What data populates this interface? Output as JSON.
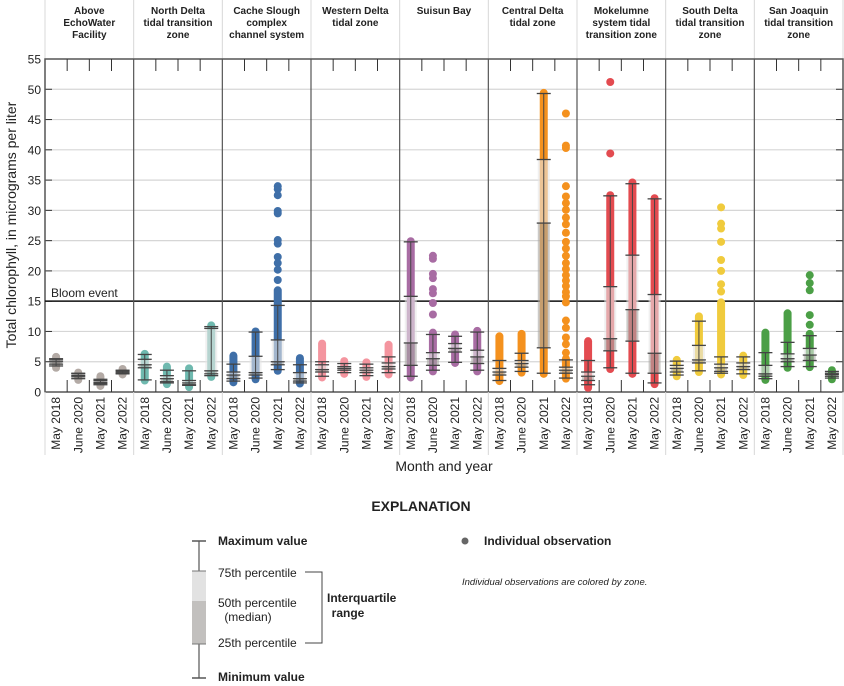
{
  "chart_data": {
    "type": "box",
    "ylabel": "Total chlorophyll, in micrograms per liter",
    "xlabel": "Month and year",
    "ylim": [
      0,
      55
    ],
    "yticks": [
      0,
      5,
      10,
      15,
      20,
      25,
      30,
      35,
      40,
      45,
      50,
      55
    ],
    "grid": true,
    "reference_line": {
      "value": 15,
      "label": "Bloom event"
    },
    "categories": [
      "May 2018",
      "June 2020",
      "May 2021",
      "May 2022"
    ],
    "panels": [
      {
        "name": "Above EchoWater Facility",
        "lines": [
          "Above",
          "EchoWater",
          "Facility"
        ],
        "color": "#b3aaa5",
        "boxes": [
          {
            "min": 4.3,
            "q1": 4.6,
            "median": 5.0,
            "q3": 5.3,
            "max": 5.5,
            "obs_min": 4.0,
            "obs_max": 5.8,
            "points": []
          },
          {
            "min": 2.2,
            "q1": 2.5,
            "median": 2.7,
            "q3": 3.0,
            "max": 3.1,
            "obs_min": 2.0,
            "obs_max": 3.2,
            "points": []
          },
          {
            "min": 1.2,
            "q1": 1.4,
            "median": 1.6,
            "q3": 1.9,
            "max": 2.1,
            "obs_min": 1.0,
            "obs_max": 2.6,
            "points": []
          },
          {
            "min": 3.0,
            "q1": 3.1,
            "median": 3.3,
            "q3": 3.5,
            "max": 3.6,
            "obs_min": 2.9,
            "obs_max": 3.8,
            "points": []
          }
        ]
      },
      {
        "name": "North Delta tidal transition zone",
        "lines": [
          "North Delta",
          "tidal transition",
          "zone"
        ],
        "color": "#6fb9af",
        "boxes": [
          {
            "min": 2.0,
            "q1": 4.0,
            "median": 4.5,
            "q3": 5.4,
            "max": 6.2,
            "obs_min": 1.9,
            "obs_max": 6.3,
            "points": []
          },
          {
            "min": 1.5,
            "q1": 1.7,
            "median": 2.2,
            "q3": 2.7,
            "max": 3.6,
            "obs_min": 1.3,
            "obs_max": 4.2,
            "points": []
          },
          {
            "min": 1.1,
            "q1": 1.2,
            "median": 1.5,
            "q3": 1.9,
            "max": 3.5,
            "obs_min": 0.8,
            "obs_max": 3.9,
            "points": []
          },
          {
            "min": 2.7,
            "q1": 3.0,
            "median": 3.5,
            "q3": 10.5,
            "max": 10.8,
            "obs_min": 2.5,
            "obs_max": 11.0,
            "points": []
          }
        ]
      },
      {
        "name": "Cache Slough complex channel system",
        "lines": [
          "Cache Slough",
          "complex",
          "channel system"
        ],
        "color": "#3f6fa8",
        "boxes": [
          {
            "min": 1.8,
            "q1": 2.2,
            "median": 2.8,
            "q3": 3.3,
            "max": 4.6,
            "obs_min": 1.6,
            "obs_max": 6.0,
            "points": []
          },
          {
            "min": 2.3,
            "q1": 2.8,
            "median": 3.2,
            "q3": 5.9,
            "max": 9.9,
            "obs_min": 2.1,
            "obs_max": 10.0,
            "points": []
          },
          {
            "min": 3.7,
            "q1": 4.5,
            "median": 5.0,
            "q3": 8.6,
            "max": 14.3,
            "obs_min": 3.5,
            "obs_max": 16.8,
            "points": [
              18.5,
              20.2,
              21.3,
              22.3,
              24.5,
              25.1,
              29.5,
              29.9,
              32.5,
              33.5,
              34.0
            ]
          },
          {
            "min": 1.5,
            "q1": 1.8,
            "median": 2.2,
            "q3": 3.2,
            "max": 4.5,
            "obs_min": 1.4,
            "obs_max": 5.6,
            "points": []
          }
        ]
      },
      {
        "name": "Western Delta tidal zone",
        "lines": [
          "Western Delta",
          "tidal zone"
        ],
        "color": "#f4959f",
        "boxes": [
          {
            "min": 2.6,
            "q1": 3.3,
            "median": 3.7,
            "q3": 4.5,
            "max": 5.0,
            "obs_min": 2.4,
            "obs_max": 8.0,
            "points": []
          },
          {
            "min": 3.2,
            "q1": 3.6,
            "median": 3.9,
            "q3": 4.2,
            "max": 4.7,
            "obs_min": 3.0,
            "obs_max": 5.1,
            "points": []
          },
          {
            "min": 2.7,
            "q1": 3.2,
            "median": 3.6,
            "q3": 4.0,
            "max": 4.6,
            "obs_min": 2.5,
            "obs_max": 4.9,
            "points": []
          },
          {
            "min": 3.2,
            "q1": 3.8,
            "median": 4.2,
            "q3": 4.8,
            "max": 5.8,
            "obs_min": 2.9,
            "obs_max": 7.8,
            "points": []
          }
        ]
      },
      {
        "name": "Suisun Bay",
        "lines": [
          "Suisun Bay"
        ],
        "color": "#a86ca3",
        "boxes": [
          {
            "min": 2.6,
            "q1": 4.4,
            "median": 8.1,
            "q3": 15.8,
            "max": 24.8,
            "obs_min": 2.4,
            "obs_max": 24.9,
            "points": []
          },
          {
            "min": 3.6,
            "q1": 4.4,
            "median": 5.5,
            "q3": 6.5,
            "max": 9.5,
            "obs_min": 3.4,
            "obs_max": 9.8,
            "points": [
              12.8,
              14.7,
              16.3,
              17.0,
              18.8,
              19.5,
              22.0,
              22.5
            ]
          },
          {
            "min": 4.9,
            "q1": 6.6,
            "median": 7.2,
            "q3": 8.0,
            "max": 9.2,
            "obs_min": 4.8,
            "obs_max": 9.5,
            "points": []
          },
          {
            "min": 3.6,
            "q1": 4.7,
            "median": 5.8,
            "q3": 6.9,
            "max": 9.9,
            "obs_min": 3.4,
            "obs_max": 10.1,
            "points": []
          }
        ]
      },
      {
        "name": "Central Delta tidal zone",
        "lines": [
          "Central Delta",
          "tidal zone"
        ],
        "color": "#f4911e",
        "boxes": [
          {
            "min": 1.9,
            "q1": 2.8,
            "median": 3.3,
            "q3": 3.9,
            "max": 5.2,
            "obs_min": 1.8,
            "obs_max": 9.2,
            "points": []
          },
          {
            "min": 3.4,
            "q1": 4.1,
            "median": 4.7,
            "q3": 5.2,
            "max": 6.4,
            "obs_min": 3.2,
            "obs_max": 9.6,
            "points": []
          },
          {
            "min": 3.1,
            "q1": 7.3,
            "median": 27.9,
            "q3": 38.4,
            "max": 49.3,
            "obs_min": 3.0,
            "obs_max": 49.4,
            "points": []
          },
          {
            "min": 2.3,
            "q1": 3.1,
            "median": 3.6,
            "q3": 4.1,
            "max": 5.3,
            "obs_min": 2.2,
            "obs_max": 5.5,
            "points": [
              6.5,
              7.9,
              9.0,
              10.6,
              11.8,
              14.8,
              15.8,
              16.5,
              17.5,
              18.4,
              19.3,
              20.3,
              21.3,
              22.5,
              23.7,
              24.8,
              26.3,
              27.7,
              28.8,
              30.1,
              31.2,
              32.3,
              34.0,
              40.3,
              40.7,
              46.0
            ]
          }
        ]
      },
      {
        "name": "Mokelumne system tidal transition zone",
        "lines": [
          "Mokelumne",
          "system tidal",
          "transition zone"
        ],
        "color": "#e34b50",
        "boxes": [
          {
            "min": 1.2,
            "q1": 1.9,
            "median": 2.6,
            "q3": 3.3,
            "max": 5.2,
            "obs_min": 0.7,
            "obs_max": 8.4,
            "points": []
          },
          {
            "min": 4.0,
            "q1": 6.8,
            "median": 8.8,
            "q3": 17.4,
            "max": 32.4,
            "obs_min": 3.8,
            "obs_max": 32.5,
            "points": [
              39.4,
              51.2
            ]
          },
          {
            "min": 3.1,
            "q1": 8.4,
            "median": 13.6,
            "q3": 22.6,
            "max": 34.4,
            "obs_min": 3.0,
            "obs_max": 34.6,
            "points": []
          },
          {
            "min": 1.5,
            "q1": 3.1,
            "median": 6.4,
            "q3": 16.1,
            "max": 31.9,
            "obs_min": 1.3,
            "obs_max": 32.0,
            "points": []
          }
        ]
      },
      {
        "name": "South Delta tidal transition zone",
        "lines": [
          "South Delta",
          "tidal transition",
          "zone"
        ],
        "color": "#f0cb3d",
        "boxes": [
          {
            "min": 2.8,
            "q1": 3.3,
            "median": 3.9,
            "q3": 4.4,
            "max": 5.1,
            "obs_min": 2.6,
            "obs_max": 5.3,
            "points": []
          },
          {
            "min": 3.5,
            "q1": 4.8,
            "median": 5.3,
            "q3": 7.7,
            "max": 11.7,
            "obs_min": 3.3,
            "obs_max": 12.5,
            "points": []
          },
          {
            "min": 3.1,
            "q1": 3.4,
            "median": 4.0,
            "q3": 4.6,
            "max": 5.8,
            "obs_min": 2.9,
            "obs_max": 14.8,
            "points": [
              16.6,
              17.8,
              20.0,
              21.8,
              24.8,
              27.0,
              27.8,
              30.5
            ]
          },
          {
            "min": 3.0,
            "q1": 3.7,
            "median": 4.2,
            "q3": 4.8,
            "max": 5.8,
            "obs_min": 2.8,
            "obs_max": 6.0,
            "points": []
          }
        ]
      },
      {
        "name": "San Joaquin tidal transition zone",
        "lines": [
          "San Joaquin",
          "tidal transition",
          "zone"
        ],
        "color": "#4b9f46",
        "boxes": [
          {
            "min": 2.2,
            "q1": 2.6,
            "median": 3.0,
            "q3": 4.4,
            "max": 6.5,
            "obs_min": 2.0,
            "obs_max": 9.8,
            "points": []
          },
          {
            "min": 4.2,
            "q1": 5.0,
            "median": 5.5,
            "q3": 6.3,
            "max": 8.2,
            "obs_min": 4.0,
            "obs_max": 13.0,
            "points": []
          },
          {
            "min": 4.2,
            "q1": 5.2,
            "median": 6.1,
            "q3": 7.2,
            "max": 9.3,
            "obs_min": 4.1,
            "obs_max": 9.6,
            "points": [
              11.1,
              12.7,
              16.8,
              18.0,
              19.3
            ]
          },
          {
            "min": 2.3,
            "q1": 2.6,
            "median": 2.9,
            "q3": 3.1,
            "max": 3.4,
            "obs_min": 2.1,
            "obs_max": 3.6,
            "points": []
          }
        ]
      }
    ]
  },
  "legend": {
    "title": "EXPLANATION",
    "max_label": "Maximum value",
    "p75_label": "75th percentile",
    "p50_label": "50th percentile",
    "median_label": "(median)",
    "p25_label": "25th percentile",
    "min_label": "Minimum value",
    "iqr_label_1": "Interquartile",
    "iqr_label_2": "range",
    "obs_label": "Individual observation",
    "note": "Individual observations are colored by zone."
  }
}
